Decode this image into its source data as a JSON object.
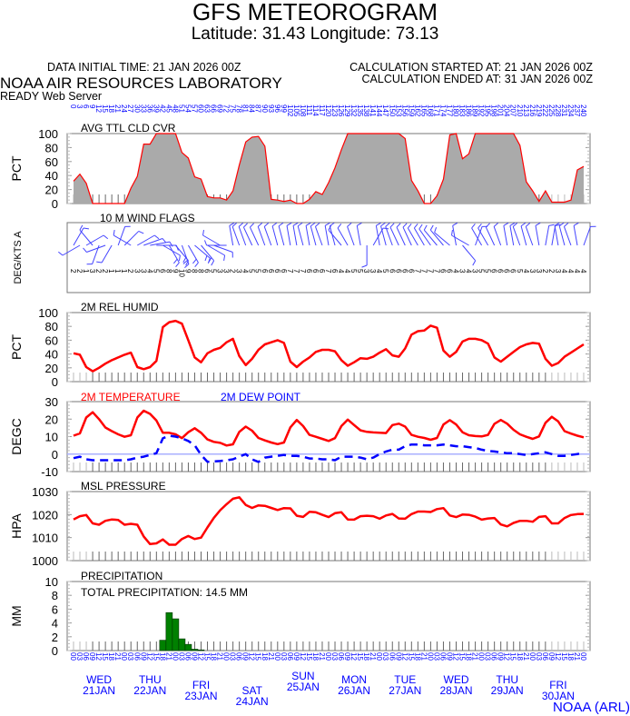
{
  "header": {
    "title": "GFS METEOROGRAM",
    "location": "Latitude: 31.43 Longitude:  73.13",
    "initial_time": "DATA INITIAL TIME: 21 JAN 2026 00Z",
    "calc_started": "CALCULATION STARTED AT: 21 JAN 2026 00Z",
    "calc_ended": "CALCULATION ENDED AT: 31 JAN 2026 00Z",
    "org": "NOAA AIR RESOURCES LABORATORY",
    "server": "READY Web Server",
    "footer": "NOAA (ARL)"
  },
  "colors": {
    "line": "#ff0000",
    "dew": "#0000ff",
    "cloud_fill": "#aaaaaa",
    "precip": "#008000",
    "labels": "#0000ff"
  },
  "chart_data": {
    "type": "line",
    "time_step_hours": 3,
    "forecast_hours_label_range": [
      0,
      240
    ],
    "hour_labels": [
      "00",
      "03",
      "06",
      "09",
      "12",
      "15",
      "18",
      "21"
    ],
    "days": [
      {
        "dow": "WED",
        "date": "21JAN"
      },
      {
        "dow": "THU",
        "date": "22JAN"
      },
      {
        "dow": "FRI",
        "date": "23JAN"
      },
      {
        "dow": "SAT",
        "date": "24JAN"
      },
      {
        "dow": "SUN",
        "date": "25JAN"
      },
      {
        "dow": "MON",
        "date": "26JAN"
      },
      {
        "dow": "TUE",
        "date": "27JAN"
      },
      {
        "dow": "WED",
        "date": "28JAN"
      },
      {
        "dow": "THU",
        "date": "29JAN"
      },
      {
        "dow": "FRI",
        "date": "30JAN"
      }
    ],
    "panels": {
      "cloud": {
        "title": "AVG TTL CLD CVR",
        "ylabel": "PCT",
        "ylim": [
          0,
          100
        ],
        "ticks": [
          "0",
          "20",
          "40",
          "60",
          "80",
          "100"
        ],
        "values": [
          32,
          42,
          29,
          0,
          0,
          0,
          0,
          0,
          0,
          22,
          39,
          85,
          85,
          100,
          100,
          100,
          100,
          73,
          65,
          38,
          35,
          10,
          8,
          8,
          5,
          18,
          55,
          88,
          95,
          96,
          82,
          6,
          5,
          3,
          5,
          0,
          0,
          6,
          17,
          13,
          30,
          51,
          77,
          100,
          100,
          100,
          100,
          100,
          100,
          100,
          100,
          100,
          93,
          33,
          18,
          0,
          0,
          11,
          35,
          98,
          100,
          64,
          71,
          100,
          100,
          100,
          100,
          100,
          100,
          100,
          83,
          31,
          18,
          3,
          18,
          2,
          2,
          2,
          5,
          48,
          53
        ]
      },
      "wind": {
        "title": "10 M  WIND FLAGS",
        "ylabel": "DEG/KTS A",
        "direction_deg": [
          30,
          240,
          60,
          320,
          200,
          250,
          210,
          20,
          45,
          300,
          60,
          70,
          80,
          90,
          120,
          150,
          140,
          160,
          150,
          130,
          140,
          120,
          110,
          300,
          270,
          350,
          340,
          340,
          335,
          335,
          340,
          340,
          345,
          345,
          350,
          350,
          345,
          350,
          345,
          340,
          350,
          345,
          320,
          330,
          340,
          350,
          180,
          30,
          350,
          345,
          340,
          335,
          335,
          335,
          330,
          330,
          325,
          320,
          320,
          310,
          350,
          140,
          300,
          20,
          330,
          330,
          335,
          340,
          350,
          350,
          340,
          345,
          340,
          350,
          10,
          10,
          350,
          345,
          340,
          350,
          20
        ],
        "speed_kts": [
          2,
          2,
          1,
          3,
          2,
          2,
          1,
          1,
          1,
          2,
          3,
          3,
          4,
          5,
          6,
          8,
          9,
          10,
          9,
          8,
          8,
          6,
          5,
          3,
          3,
          2,
          3,
          4,
          5,
          5,
          6,
          6,
          6,
          6,
          7,
          7,
          7,
          6,
          6,
          6,
          7,
          6,
          4,
          4,
          5,
          5,
          3,
          3,
          4,
          5,
          6,
          6,
          6,
          6,
          7,
          7,
          7,
          7,
          6,
          6,
          4,
          3,
          4,
          3,
          5,
          5,
          6,
          6,
          6,
          6,
          5,
          4,
          3,
          3,
          2,
          2,
          3,
          4,
          4,
          4,
          4
        ]
      },
      "rh": {
        "title": "2M REL HUMID",
        "ylabel": "PCT",
        "ylim": [
          0,
          100
        ],
        "ticks": [
          "0",
          "20",
          "40",
          "60",
          "80",
          "100"
        ],
        "values": [
          41,
          39,
          21,
          15,
          20,
          26,
          31,
          35,
          39,
          42,
          21,
          18,
          21,
          30,
          79,
          86,
          88,
          84,
          60,
          35,
          28,
          41,
          46,
          49,
          57,
          62,
          37,
          24,
          33,
          46,
          54,
          57,
          60,
          56,
          29,
          21,
          29,
          35,
          43,
          46,
          46,
          44,
          31,
          23,
          28,
          34,
          33,
          36,
          42,
          47,
          38,
          36,
          48,
          68,
          73,
          74,
          81,
          78,
          45,
          36,
          43,
          58,
          62,
          62,
          60,
          55,
          35,
          29,
          36,
          43,
          50,
          54,
          56,
          55,
          33,
          23,
          27,
          36,
          42,
          48,
          54
        ]
      },
      "temp": {
        "title_temp": "2M TEMPERATURE",
        "title_dew": "2M   DEW POINT",
        "ylabel": "DEGC",
        "ylim": [
          -10,
          30
        ],
        "ticks": [
          "-10",
          "0",
          "10",
          "20",
          "30"
        ],
        "temperature": [
          10.5,
          11.8,
          20.9,
          23.9,
          20,
          15.2,
          13.1,
          11.3,
          9.9,
          10.8,
          20.9,
          24.8,
          23,
          19.2,
          12.2,
          12.2,
          11.3,
          9.1,
          12.5,
          14.8,
          12.2,
          8.4,
          7,
          6.4,
          4.9,
          5.6,
          12.7,
          15.7,
          13.4,
          9.2,
          7.8,
          6.6,
          5.7,
          6.6,
          15.3,
          19.5,
          16,
          11,
          9.9,
          8.7,
          7.5,
          9.1,
          16,
          19.7,
          16.6,
          13.6,
          12.7,
          12.4,
          12.2,
          12,
          16.6,
          17.4,
          15.7,
          11,
          9.9,
          9.2,
          8.2,
          9.2,
          16.9,
          19.4,
          16.9,
          12.5,
          10.8,
          10.3,
          10.1,
          11,
          17.3,
          19.5,
          17.4,
          13.9,
          11.3,
          9.9,
          8.7,
          10.1,
          17.9,
          21.3,
          18.7,
          13.1,
          11.7,
          10.5,
          9.6
        ],
        "dew_point": [
          -2.3,
          -1.5,
          -3,
          -3.5,
          -3.5,
          -3.5,
          -3.5,
          -3.5,
          -3.5,
          -3,
          -2,
          -1.5,
          -0.5,
          0.5,
          9,
          10.5,
          10,
          9,
          7.5,
          5,
          -0.5,
          -4.4,
          -4.2,
          -4,
          -3.5,
          -3,
          -1.5,
          0,
          -3,
          -4.5,
          -2,
          -1.5,
          -1,
          -0.5,
          -1,
          -1,
          -1.5,
          -2.5,
          -2.5,
          -3,
          -3,
          -3.5,
          -1.5,
          -1.5,
          -1.5,
          -2,
          -3,
          -2,
          0,
          1.5,
          2.5,
          2.5,
          4.5,
          5.5,
          5.5,
          5,
          5,
          5,
          5.5,
          5,
          4.5,
          4.5,
          4,
          3.5,
          2.5,
          1.8,
          1.5,
          1,
          0.5,
          0.5,
          0,
          -0.5,
          0,
          0.5,
          1,
          0,
          -1,
          -1,
          -0.5,
          0,
          1
        ]
      },
      "pressure": {
        "title": "MSL PRESSURE",
        "ylabel": "HPA",
        "ylim": [
          1000,
          1030
        ],
        "ticks": [
          "1000",
          "1010",
          "1020",
          "1030"
        ],
        "values": [
          1017.9,
          1019.3,
          1019.8,
          1016.2,
          1015.6,
          1017.3,
          1017.9,
          1017.7,
          1015.6,
          1016,
          1015.6,
          1010.5,
          1007.2,
          1007.5,
          1009.2,
          1006.9,
          1006.9,
          1009.4,
          1010.7,
          1009.4,
          1010,
          1014.4,
          1018.6,
          1021.9,
          1024.5,
          1026.9,
          1027.5,
          1024.2,
          1022.9,
          1024,
          1023.8,
          1022.9,
          1022,
          1022.8,
          1022.7,
          1019.5,
          1019,
          1021.2,
          1021,
          1019.9,
          1018.9,
          1020.6,
          1021,
          1017.9,
          1017.8,
          1019.3,
          1019.5,
          1019.3,
          1018.2,
          1019.6,
          1020.3,
          1018.3,
          1018.2,
          1020.2,
          1021.3,
          1021.3,
          1021.1,
          1022.4,
          1022.8,
          1019.6,
          1018.9,
          1020,
          1019.9,
          1019.1,
          1017.8,
          1018.3,
          1018.5,
          1015.7,
          1014.9,
          1016.4,
          1017.3,
          1017.3,
          1016.9,
          1019,
          1019.3,
          1016.2,
          1016.2,
          1018.5,
          1019.8,
          1020.2,
          1020.3
        ]
      },
      "precip": {
        "title": "PRECIPITATION",
        "total": "TOTAL PRECIPITATION:  14.5 MM",
        "ylabel": "MM",
        "ylim": [
          0,
          10
        ],
        "ticks": [
          "0",
          "2",
          "4",
          "6",
          "8",
          "10"
        ],
        "values": [
          0,
          0,
          0,
          0,
          0,
          0,
          0,
          0,
          0,
          0,
          0,
          0,
          0,
          0,
          1.5,
          5.5,
          4.6,
          1.7,
          0.9,
          0.2,
          0.1,
          0,
          0,
          0,
          0,
          0,
          0,
          0,
          0,
          0,
          0,
          0,
          0,
          0,
          0,
          0,
          0,
          0,
          0,
          0,
          0,
          0,
          0,
          0,
          0,
          0,
          0,
          0,
          0,
          0,
          0,
          0,
          0,
          0,
          0,
          0,
          0,
          0,
          0,
          0,
          0,
          0,
          0,
          0,
          0,
          0,
          0,
          0,
          0,
          0,
          0,
          0,
          0,
          0,
          0,
          0,
          0,
          0,
          0,
          0,
          0
        ]
      }
    }
  }
}
